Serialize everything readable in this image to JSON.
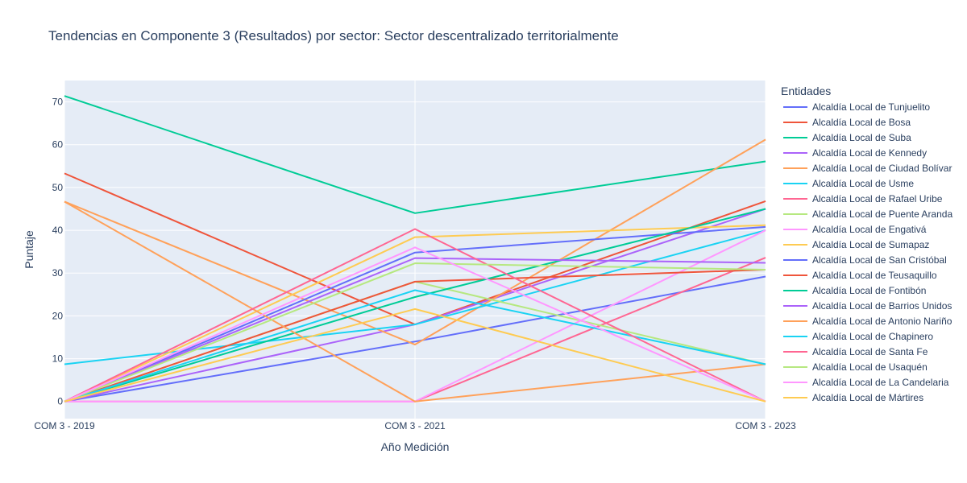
{
  "chart_data": {
    "type": "line",
    "title": "Tendencias en Componente 3 (Resultados) por sector: Sector descentralizado territorialmente",
    "xlabel": "Año Medición",
    "ylabel": "Puntaje",
    "x": [
      "COM 3 - 2019",
      "COM 3 - 2021",
      "COM 3 - 2023"
    ],
    "ylim": [
      -4,
      75
    ],
    "yticks": [
      0,
      10,
      20,
      30,
      40,
      50,
      60,
      70
    ],
    "grid": true,
    "legend_title": "Entidades",
    "legend_position": "right",
    "series": [
      {
        "name": "Alcaldía Local de Tunjuelito",
        "color": "#636efa",
        "values": [
          0,
          14,
          29.2
        ]
      },
      {
        "name": "Alcaldía Local de Bosa",
        "color": "#EF553B",
        "values": [
          53.3,
          18,
          46.8
        ]
      },
      {
        "name": "Alcaldía Local de Suba",
        "color": "#00cc96",
        "values": [
          71.4,
          44,
          56.1
        ]
      },
      {
        "name": "Alcaldía Local de Kennedy",
        "color": "#ab63fa",
        "values": [
          0,
          18,
          45
        ]
      },
      {
        "name": "Alcaldía Local de Ciudad Bolívar",
        "color": "#FFA15A",
        "values": [
          46.7,
          13.3,
          61.2
        ]
      },
      {
        "name": "Alcaldía Local de Usme",
        "color": "#19d3f3",
        "values": [
          8.7,
          18,
          40
        ]
      },
      {
        "name": "Alcaldía Local de Rafael Uribe",
        "color": "#FF6692",
        "values": [
          0,
          0,
          33.6
        ]
      },
      {
        "name": "Alcaldía Local de Puente Aranda",
        "color": "#B6E880",
        "values": [
          0,
          28,
          8.7
        ]
      },
      {
        "name": "Alcaldía Local de Engativá",
        "color": "#FF97FF",
        "values": [
          0,
          0,
          40
        ]
      },
      {
        "name": "Alcaldía Local de Sumapaz",
        "color": "#FECB52",
        "values": [
          0,
          38.4,
          41.2
        ]
      },
      {
        "name": "Alcaldía Local de San Cristóbal",
        "color": "#636efa",
        "values": [
          0,
          34.8,
          40.8
        ]
      },
      {
        "name": "Alcaldía Local de Teusaquillo",
        "color": "#EF553B",
        "values": [
          0,
          28,
          30.8
        ]
      },
      {
        "name": "Alcaldía Local de Fontibón",
        "color": "#00cc96",
        "values": [
          0,
          24.4,
          45
        ]
      },
      {
        "name": "Alcaldía Local de Barrios Unidos",
        "color": "#ab63fa",
        "values": [
          0,
          33.5,
          32.4
        ]
      },
      {
        "name": "Alcaldía Local de Antonio Nariño",
        "color": "#FFA15A",
        "values": [
          46.7,
          0,
          8.7
        ]
      },
      {
        "name": "Alcaldía Local de Chapinero",
        "color": "#19d3f3",
        "values": [
          0,
          26,
          8.7
        ]
      },
      {
        "name": "Alcaldía Local de Santa Fe",
        "color": "#FF6692",
        "values": [
          0,
          40.3,
          0
        ]
      },
      {
        "name": "Alcaldía Local de Usaquén",
        "color": "#B6E880",
        "values": [
          0,
          32.3,
          30.8
        ]
      },
      {
        "name": "Alcaldía Local de La Candelaria",
        "color": "#FF97FF",
        "values": [
          0,
          36,
          0
        ]
      },
      {
        "name": "Alcaldía Local de Mártires",
        "color": "#FECB52",
        "values": [
          0,
          21.6,
          0
        ]
      }
    ]
  }
}
